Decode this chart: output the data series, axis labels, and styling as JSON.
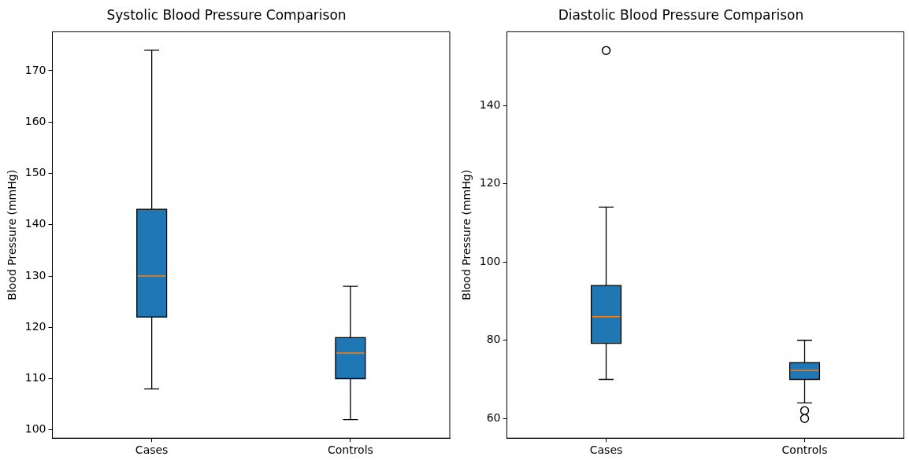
{
  "chart_data": [
    {
      "type": "box",
      "title": "Systolic Blood Pressure Comparison",
      "ylabel": "Blood Pressure (mmHg)",
      "categories": [
        "Cases",
        "Controls"
      ],
      "ylim": [
        98.4,
        177.6
      ],
      "yticks": [
        100,
        110,
        120,
        130,
        140,
        150,
        160,
        170
      ],
      "grid": false,
      "series": [
        {
          "color": "#1f77b4",
          "boxes": [
            {
              "low": 108,
              "q1": 122,
              "median": 130,
              "q3": 143,
              "high": 174
            },
            {
              "low": 102,
              "q1": 110,
              "median": 115,
              "q3": 118,
              "high": 128
            }
          ]
        }
      ]
    },
    {
      "type": "box",
      "title": "Diastolic Blood Pressure Comparison",
      "ylabel": "Blood Pressure (mmHg)",
      "categories": [
        "Cases",
        "Controls"
      ],
      "ylim": [
        55,
        158.8
      ],
      "yticks": [
        60,
        80,
        100,
        120,
        140
      ],
      "grid": false,
      "series": [
        {
          "color": "#1f77b4",
          "boxes": [
            {
              "low": 70,
              "q1": 79.2,
              "median": 86,
              "q3": 94,
              "high": 114,
              "outliers": [
                154
              ]
            },
            {
              "low": 64,
              "q1": 70,
              "median": 72.3,
              "q3": 74.3,
              "high": 80,
              "outliers": [
                62,
                60
              ]
            }
          ]
        }
      ]
    }
  ]
}
